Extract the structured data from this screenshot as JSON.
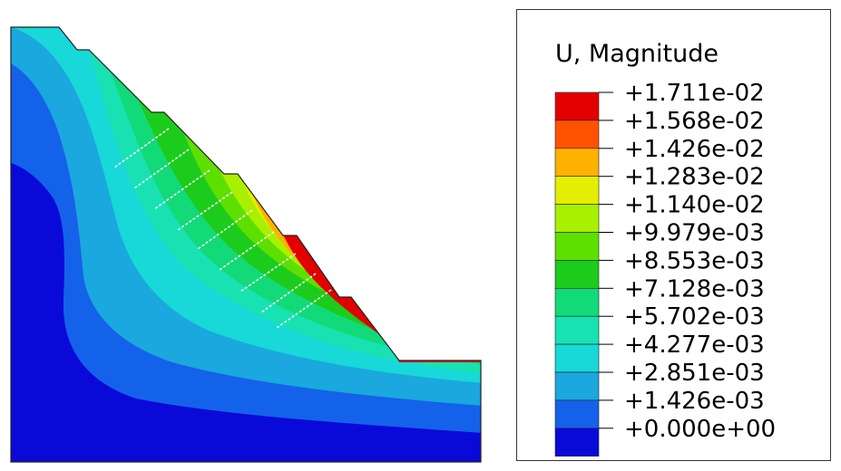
{
  "legend": {
    "title": "U, Magnitude",
    "labels": [
      "+1.711e-02",
      "+1.568e-02",
      "+1.426e-02",
      "+1.283e-02",
      "+1.140e-02",
      "+9.979e-03",
      "+8.553e-03",
      "+7.128e-03",
      "+5.702e-03",
      "+4.277e-03",
      "+2.851e-03",
      "+1.426e-03",
      "+0.000e+00"
    ],
    "colors": [
      "#e30000",
      "#ff5200",
      "#ffb100",
      "#e4ee00",
      "#a8f000",
      "#5de000",
      "#1ccc1c",
      "#12da78",
      "#18e2b2",
      "#18d8d8",
      "#1aa8de",
      "#1462ea",
      "#0a0ad8"
    ]
  },
  "contour": {
    "band_colors": {
      "band1": "#0a0ad8",
      "band2": "#1462ea",
      "band3": "#1aa8de",
      "band4": "#18d8d8",
      "band5": "#18e2b2",
      "band6": "#12da78",
      "band7": "#1ccc1c",
      "band8": "#5de000",
      "band9": "#a8f000",
      "band10": "#e4ee00",
      "band11": "#ffb100",
      "band12": "#ff5200",
      "band13": "#e30000"
    }
  }
}
